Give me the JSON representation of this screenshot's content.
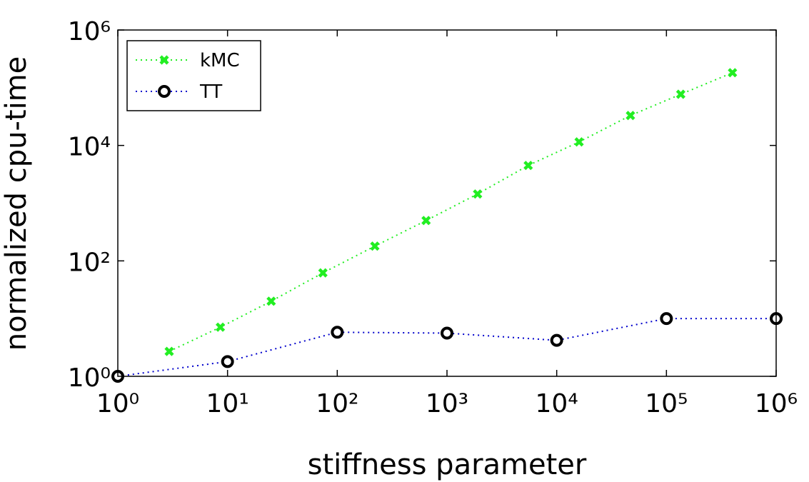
{
  "chart_data": {
    "type": "line",
    "xlabel": "stiffness parameter",
    "ylabel": "normalized cpu-time",
    "xscale": "log",
    "yscale": "log",
    "xlim": [
      1,
      1000000
    ],
    "ylim": [
      1,
      1000000
    ],
    "xticks": [
      {
        "value": 1,
        "label": "10⁰"
      },
      {
        "value": 10,
        "label": "10¹"
      },
      {
        "value": 100,
        "label": "10²"
      },
      {
        "value": 1000,
        "label": "10³"
      },
      {
        "value": 10000,
        "label": "10⁴"
      },
      {
        "value": 100000,
        "label": "10⁵"
      },
      {
        "value": 1000000,
        "label": "10⁶"
      }
    ],
    "yticks": [
      {
        "value": 1,
        "label": "10⁰"
      },
      {
        "value": 100,
        "label": "10²"
      },
      {
        "value": 10000,
        "label": "10⁴"
      },
      {
        "value": 1000000,
        "label": "10⁶"
      }
    ],
    "legend": "upper left",
    "series": [
      {
        "name": "kMC",
        "color": "#22ee22",
        "marker": "x",
        "x": [
          2.94,
          8.6,
          25,
          74,
          220,
          645,
          1900,
          5500,
          16000,
          47000,
          135000,
          400000
        ],
        "values": [
          2.7,
          7.1,
          20,
          62,
          180,
          500,
          1440,
          4500,
          11500,
          33000,
          77000,
          182000
        ]
      },
      {
        "name": "TT",
        "color": "#0000cc",
        "marker": "o",
        "x": [
          1,
          10,
          100,
          1000,
          10000,
          100000,
          1000000
        ],
        "values": [
          1,
          1.8,
          5.8,
          5.6,
          4.2,
          10,
          10
        ]
      }
    ]
  }
}
